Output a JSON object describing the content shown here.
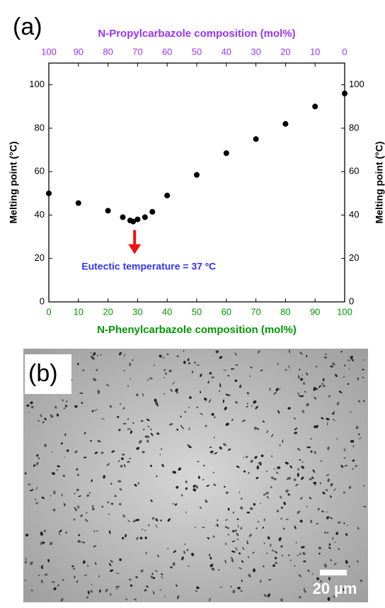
{
  "panel_label": "(a)",
  "chart_data": {
    "type": "scatter",
    "x": [
      0,
      10,
      20,
      25,
      27.5,
      28.5,
      30,
      32.5,
      35,
      40,
      50,
      60,
      70,
      80,
      90,
      100
    ],
    "values": [
      50,
      45.5,
      42,
      39,
      37.5,
      37,
      38,
      39,
      41.5,
      49,
      58.5,
      68.5,
      75,
      82,
      90,
      96
    ],
    "color": "#000000",
    "xlabel": "N-Phenylcarbazole composition (mol%)",
    "x2label": "N-Propylcarbazole composition (mol%)",
    "ylabel": "Melting point (°C)",
    "y2label": "Melting point (°C)",
    "xlim": [
      0,
      100
    ],
    "xticks": [
      0,
      10,
      20,
      30,
      40,
      50,
      60,
      70,
      80,
      90,
      100
    ],
    "x2lim": [
      100,
      0
    ],
    "x2ticks": [
      100,
      90,
      80,
      70,
      60,
      50,
      40,
      30,
      20,
      10,
      0
    ],
    "ylim": [
      0,
      110
    ],
    "yticks": [
      0,
      20,
      40,
      60,
      80,
      100
    ],
    "y2lim": [
      0,
      110
    ],
    "y2ticks": [
      0,
      20,
      40,
      60,
      80,
      100
    ],
    "annotation": {
      "text": "Eutectic temperature = 37 ºC",
      "x": 29,
      "y": 37
    },
    "x_color": "#009900",
    "x2_color": "#9933ff",
    "annotation_color": "#3333ff",
    "arrow_color": "#ee1111"
  },
  "image_panel": {
    "label": "(b)",
    "scale_bar": "20 µm"
  }
}
